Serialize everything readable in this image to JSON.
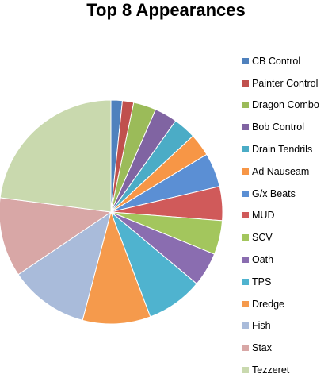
{
  "chart_data": {
    "type": "pie",
    "title": "Top 8 Appearances",
    "legend_position": "right",
    "start_angle_deg": 0,
    "direction": "clockwise",
    "slices": [
      {
        "label": "CB Control",
        "value": 1,
        "color": "#4F81BD"
      },
      {
        "label": "Painter Control",
        "value": 1,
        "color": "#C0504D"
      },
      {
        "label": "Dragon Combo",
        "value": 2,
        "color": "#9BBB59"
      },
      {
        "label": "Bob Control",
        "value": 2,
        "color": "#8064A2"
      },
      {
        "label": "Drain Tendrils",
        "value": 2,
        "color": "#4BACC6"
      },
      {
        "label": "Ad Nauseam",
        "value": 2,
        "color": "#F79646"
      },
      {
        "label": "G/x Beats",
        "value": 3,
        "color": "#5B8FD4"
      },
      {
        "label": "MUD",
        "value": 3,
        "color": "#D05A5A"
      },
      {
        "label": "SCV",
        "value": 3,
        "color": "#A3C65D"
      },
      {
        "label": "Oath",
        "value": 3,
        "color": "#8A6DB0"
      },
      {
        "label": "TPS",
        "value": 5,
        "color": "#4FB3CF"
      },
      {
        "label": "Dredge",
        "value": 6,
        "color": "#F59A4C"
      },
      {
        "label": "Fish",
        "value": 7,
        "color": "#A9BBDA"
      },
      {
        "label": "Stax",
        "value": 7,
        "color": "#D8A7A6"
      },
      {
        "label": "Tezzeret",
        "value": 14,
        "color": "#C9D9AE"
      }
    ]
  }
}
